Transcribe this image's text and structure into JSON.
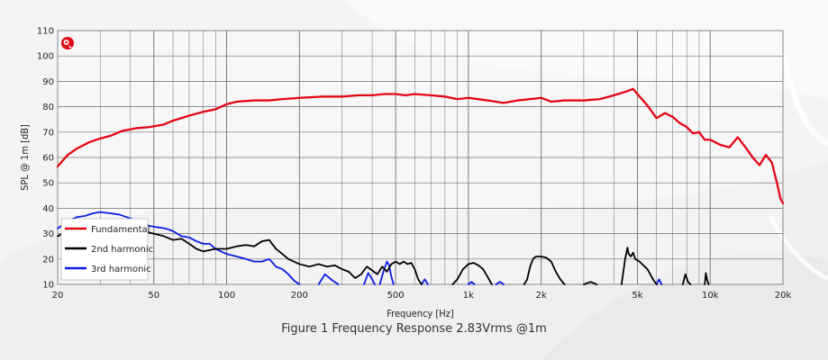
{
  "caption": "Figure 1 Frequency Response 2.83Vrms @1m",
  "logo_icon": "brand-logo-icon",
  "colors": {
    "fundamental": "#e30613",
    "harmonic2": "#000000",
    "harmonic3": "#0a1de0",
    "grid": "#6f6f6f",
    "plot_bg": "rgba(255,255,255,0.25)"
  },
  "chart_data": {
    "type": "line",
    "title": "",
    "xlabel": "Frequency [Hz]",
    "ylabel": "SPL @ 1m [dB]",
    "xscale": "log",
    "xlim": [
      20,
      20000
    ],
    "ylim": [
      10,
      110
    ],
    "xticks": [
      {
        "v": 20,
        "label": "20"
      },
      {
        "v": 50,
        "label": "50"
      },
      {
        "v": 100,
        "label": "100"
      },
      {
        "v": 200,
        "label": "200"
      },
      {
        "v": 500,
        "label": "500"
      },
      {
        "v": 1000,
        "label": "1k"
      },
      {
        "v": 2000,
        "label": "2k"
      },
      {
        "v": 5000,
        "label": "5k"
      },
      {
        "v": 10000,
        "label": "10k"
      },
      {
        "v": 20000,
        "label": "20k"
      }
    ],
    "yticks": [
      10,
      20,
      30,
      40,
      50,
      60,
      70,
      80,
      90,
      100,
      110
    ],
    "grid": true,
    "legend_position": "bottom-left",
    "series": [
      {
        "name": "Fundamental",
        "color": "#e30613",
        "points": [
          [
            20,
            56.5
          ],
          [
            22,
            61
          ],
          [
            24,
            63.5
          ],
          [
            27,
            66
          ],
          [
            30,
            67.5
          ],
          [
            33,
            68.5
          ],
          [
            37,
            70.5
          ],
          [
            42,
            71.5
          ],
          [
            48,
            72
          ],
          [
            55,
            73
          ],
          [
            60,
            74.5
          ],
          [
            70,
            76.5
          ],
          [
            80,
            78
          ],
          [
            90,
            79
          ],
          [
            100,
            81
          ],
          [
            110,
            82
          ],
          [
            130,
            82.5
          ],
          [
            150,
            82.5
          ],
          [
            170,
            83
          ],
          [
            200,
            83.5
          ],
          [
            250,
            84
          ],
          [
            300,
            84
          ],
          [
            350,
            84.5
          ],
          [
            400,
            84.5
          ],
          [
            450,
            85
          ],
          [
            500,
            85
          ],
          [
            550,
            84.5
          ],
          [
            600,
            85
          ],
          [
            700,
            84.5
          ],
          [
            800,
            84
          ],
          [
            900,
            83
          ],
          [
            1000,
            83.5
          ],
          [
            1200,
            82.5
          ],
          [
            1400,
            81.5
          ],
          [
            1600,
            82.5
          ],
          [
            1800,
            83
          ],
          [
            2000,
            83.5
          ],
          [
            2200,
            82
          ],
          [
            2500,
            82.5
          ],
          [
            3000,
            82.5
          ],
          [
            3500,
            83
          ],
          [
            4000,
            84.5
          ],
          [
            4500,
            86
          ],
          [
            4800,
            87
          ],
          [
            5000,
            85
          ],
          [
            5500,
            80.5
          ],
          [
            6000,
            75.5
          ],
          [
            6500,
            77.5
          ],
          [
            7000,
            76
          ],
          [
            7500,
            73.5
          ],
          [
            8000,
            72
          ],
          [
            8500,
            69.5
          ],
          [
            9000,
            70
          ],
          [
            9500,
            67
          ],
          [
            10000,
            67
          ],
          [
            11000,
            65
          ],
          [
            12000,
            64
          ],
          [
            13000,
            68
          ],
          [
            14000,
            64
          ],
          [
            15000,
            60
          ],
          [
            16000,
            57
          ],
          [
            17000,
            61
          ],
          [
            18000,
            58
          ],
          [
            19000,
            49
          ],
          [
            19500,
            44
          ],
          [
            20000,
            42
          ]
        ]
      },
      {
        "name": "2nd harmonic",
        "color": "#000000",
        "points": [
          [
            20,
            29
          ],
          [
            22,
            31
          ],
          [
            25,
            33
          ],
          [
            28,
            33.5
          ],
          [
            32,
            33
          ],
          [
            36,
            33
          ],
          [
            40,
            32
          ],
          [
            45,
            31
          ],
          [
            50,
            30
          ],
          [
            55,
            29
          ],
          [
            60,
            27.5
          ],
          [
            65,
            28
          ],
          [
            70,
            26
          ],
          [
            75,
            24
          ],
          [
            80,
            23
          ],
          [
            90,
            24
          ],
          [
            100,
            24
          ],
          [
            110,
            25
          ],
          [
            120,
            25.5
          ],
          [
            130,
            25
          ],
          [
            140,
            27
          ],
          [
            150,
            27.5
          ],
          [
            160,
            24
          ],
          [
            170,
            22
          ],
          [
            180,
            20
          ],
          [
            200,
            18
          ],
          [
            220,
            17
          ],
          [
            240,
            18
          ],
          [
            260,
            17
          ],
          [
            280,
            17.5
          ],
          [
            300,
            16
          ],
          [
            320,
            15
          ],
          [
            340,
            12.5
          ],
          [
            360,
            14
          ],
          [
            380,
            17
          ],
          [
            400,
            15.5
          ],
          [
            420,
            14
          ],
          [
            440,
            17
          ],
          [
            460,
            15
          ],
          [
            480,
            18
          ],
          [
            500,
            19
          ],
          [
            520,
            18
          ],
          [
            540,
            19
          ],
          [
            560,
            18
          ],
          [
            580,
            18.5
          ],
          [
            600,
            16
          ],
          [
            620,
            12
          ],
          [
            640,
            10
          ]
        ],
        "segments": [
          [
            [
              860,
              10
            ],
            [
              900,
              12
            ],
            [
              950,
              16
            ],
            [
              1000,
              18
            ],
            [
              1050,
              18.5
            ],
            [
              1100,
              17.5
            ],
            [
              1150,
              16
            ],
            [
              1200,
              13
            ],
            [
              1250,
              10
            ]
          ],
          [
            [
              1700,
              10
            ],
            [
              1750,
              12
            ],
            [
              1800,
              17
            ],
            [
              1850,
              20
            ],
            [
              1900,
              21
            ],
            [
              2000,
              21
            ],
            [
              2100,
              20.5
            ],
            [
              2200,
              19
            ],
            [
              2300,
              15
            ],
            [
              2400,
              12
            ],
            [
              2500,
              10
            ]
          ],
          [
            [
              3000,
              10
            ],
            [
              3200,
              11
            ],
            [
              3400,
              10
            ]
          ],
          [
            [
              4300,
              10
            ],
            [
              4450,
              20
            ],
            [
              4550,
              24.5
            ],
            [
              4600,
              22
            ],
            [
              4700,
              21
            ],
            [
              4800,
              22.5
            ],
            [
              4900,
              20
            ],
            [
              5100,
              19
            ],
            [
              5500,
              16
            ],
            [
              5800,
              12
            ],
            [
              6000,
              10
            ]
          ],
          [
            [
              7700,
              10
            ],
            [
              7900,
              14
            ],
            [
              8100,
              11
            ],
            [
              8300,
              10
            ]
          ],
          [
            [
              9500,
              10
            ],
            [
              9600,
              14.5
            ],
            [
              9700,
              12
            ],
            [
              9850,
              10
            ]
          ]
        ]
      },
      {
        "name": "3rd harmonic",
        "color": "#0a1de0",
        "points": [
          [
            20,
            32
          ],
          [
            22,
            35
          ],
          [
            24,
            36.5
          ],
          [
            26,
            37
          ],
          [
            28,
            38
          ],
          [
            30,
            38.5
          ],
          [
            33,
            38
          ],
          [
            36,
            37.5
          ],
          [
            40,
            36
          ],
          [
            44,
            34.5
          ],
          [
            48,
            33
          ],
          [
            52,
            32.5
          ],
          [
            56,
            32
          ],
          [
            60,
            31
          ],
          [
            65,
            29
          ],
          [
            70,
            28.5
          ],
          [
            75,
            27
          ],
          [
            80,
            26
          ],
          [
            85,
            26
          ],
          [
            90,
            24
          ],
          [
            100,
            22
          ],
          [
            110,
            21
          ],
          [
            120,
            20
          ],
          [
            130,
            19
          ],
          [
            140,
            19
          ],
          [
            150,
            20
          ],
          [
            160,
            17
          ],
          [
            170,
            16
          ],
          [
            180,
            14
          ],
          [
            190,
            11.5
          ],
          [
            200,
            10
          ]
        ],
        "segments": [
          [
            [
              240,
              10
            ],
            [
              255,
              14
            ],
            [
              270,
              12
            ],
            [
              290,
              10
            ]
          ],
          [
            [
              370,
              10
            ],
            [
              385,
              14.5
            ],
            [
              400,
              12
            ],
            [
              410,
              10
            ]
          ],
          [
            [
              430,
              10
            ],
            [
              445,
              15
            ],
            [
              460,
              19
            ],
            [
              470,
              17.5
            ],
            [
              480,
              13
            ],
            [
              490,
              10
            ]
          ],
          [
            [
              640,
              10
            ],
            [
              660,
              12
            ],
            [
              680,
              10
            ]
          ],
          [
            [
              1000,
              10
            ],
            [
              1030,
              11
            ],
            [
              1060,
              10
            ]
          ],
          [
            [
              1300,
              10
            ],
            [
              1350,
              11
            ],
            [
              1400,
              10
            ]
          ],
          [
            [
              6000,
              10
            ],
            [
              6150,
              12
            ],
            [
              6300,
              10
            ]
          ]
        ]
      }
    ]
  }
}
